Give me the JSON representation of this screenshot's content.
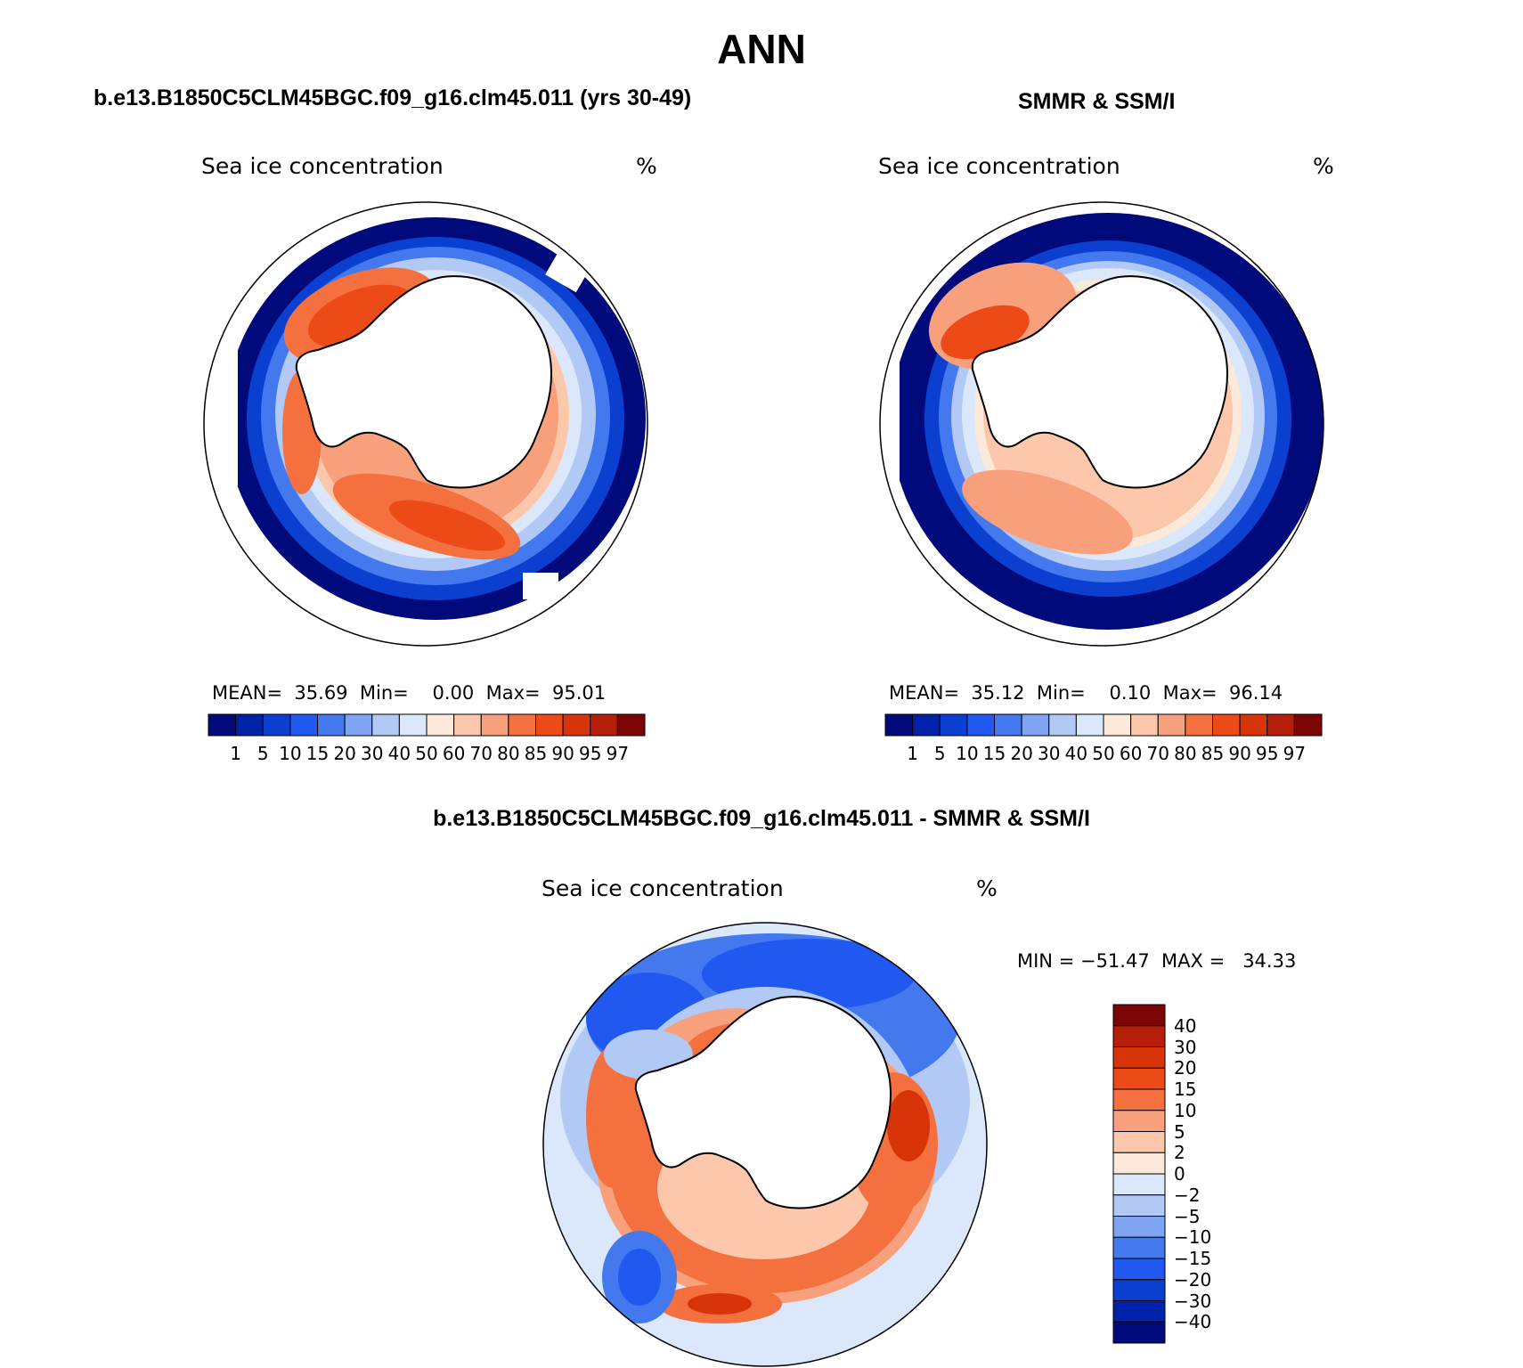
{
  "title": "ANN",
  "panels": [
    {
      "id": "model",
      "header": "b.e13.B1850C5CLM45BGC.f09_g16.clm45.011 (yrs 30-49)",
      "variable": "Sea ice concentration",
      "units": "%",
      "stats": {
        "mean_label": "MEAN=",
        "mean": "35.69",
        "min_label": "Min=",
        "min": "0.00",
        "max_label": "Max=",
        "max": "95.01"
      }
    },
    {
      "id": "obs",
      "header": "SMMR & SSM/I",
      "variable": "Sea ice concentration",
      "units": "%",
      "stats": {
        "mean_label": "MEAN=",
        "mean": "35.12",
        "min_label": "Min=",
        "min": "0.10",
        "max_label": "Max=",
        "max": "96.14"
      }
    },
    {
      "id": "diff",
      "header": "b.e13.B1850C5CLM45BGC.f09_g16.clm45.011 - SMMR & SSM/I",
      "variable": "Sea ice concentration",
      "units": "%",
      "minmax": "MIN = −51.47  MAX =   34.33"
    }
  ],
  "colorbar_abs": {
    "levels": [
      "1",
      "5",
      "10",
      "15",
      "20",
      "30",
      "40",
      "50",
      "60",
      "70",
      "80",
      "85",
      "90",
      "95",
      "97"
    ],
    "colors": [
      "#000a7a",
      "#0022a8",
      "#0a3fd0",
      "#2058f0",
      "#4478ee",
      "#7fa5f2",
      "#b2c8f5",
      "#dbe8fb",
      "#fde9da",
      "#fcc7ab",
      "#f8a07c",
      "#f4703f",
      "#ec4a16",
      "#d8340a",
      "#b51e08",
      "#7c0606"
    ]
  },
  "colorbar_diff": {
    "levels": [
      "40",
      "30",
      "20",
      "15",
      "10",
      "5",
      "2",
      "0",
      "−2",
      "−5",
      "−10",
      "−15",
      "−20",
      "−30",
      "−40"
    ],
    "colors": [
      "#7c0606",
      "#b51e08",
      "#d8340a",
      "#ec4a16",
      "#f4703f",
      "#f8a07c",
      "#fcc7ab",
      "#fde9da",
      "#dbe8fb",
      "#b2c8f5",
      "#7fa5f2",
      "#4478ee",
      "#2058f0",
      "#0a3fd0",
      "#0022a8",
      "#000a7a"
    ]
  }
}
